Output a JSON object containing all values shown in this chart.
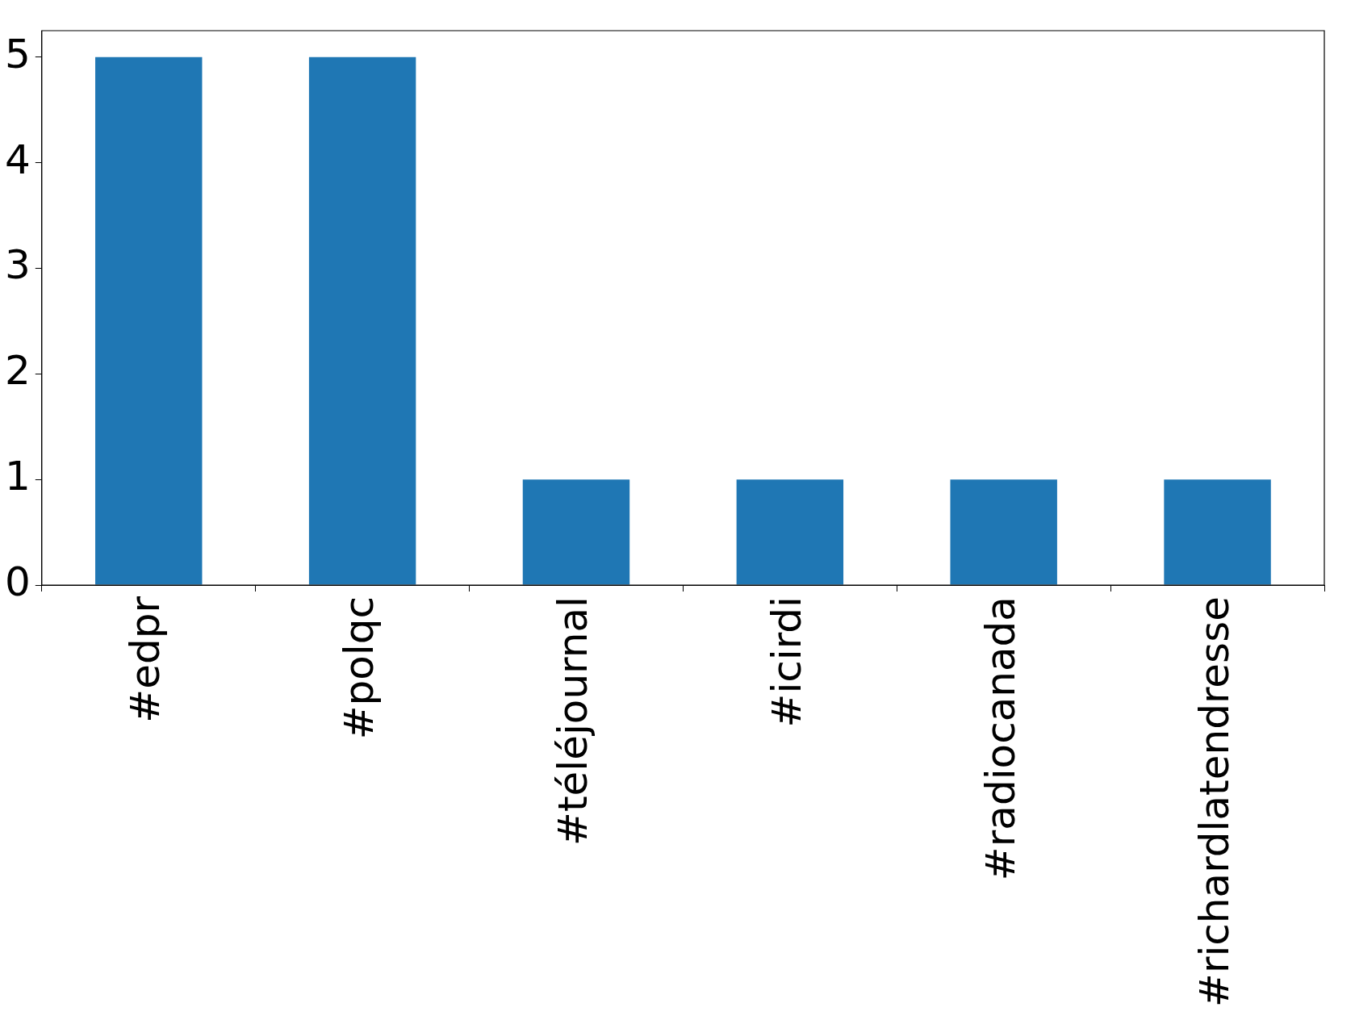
{
  "chart_data": {
    "type": "bar",
    "categories": [
      "#edpr",
      "#polqc",
      "#téléjournal",
      "#icirdi",
      "#radiocanada",
      "#richardlatendresse"
    ],
    "values": [
      5,
      5,
      1,
      1,
      1,
      1
    ],
    "color": "#1f77b4",
    "ylim": [
      0,
      5.25
    ],
    "yticks": [
      0,
      1,
      2,
      3,
      4,
      5
    ],
    "grid": false,
    "legend": false
  }
}
